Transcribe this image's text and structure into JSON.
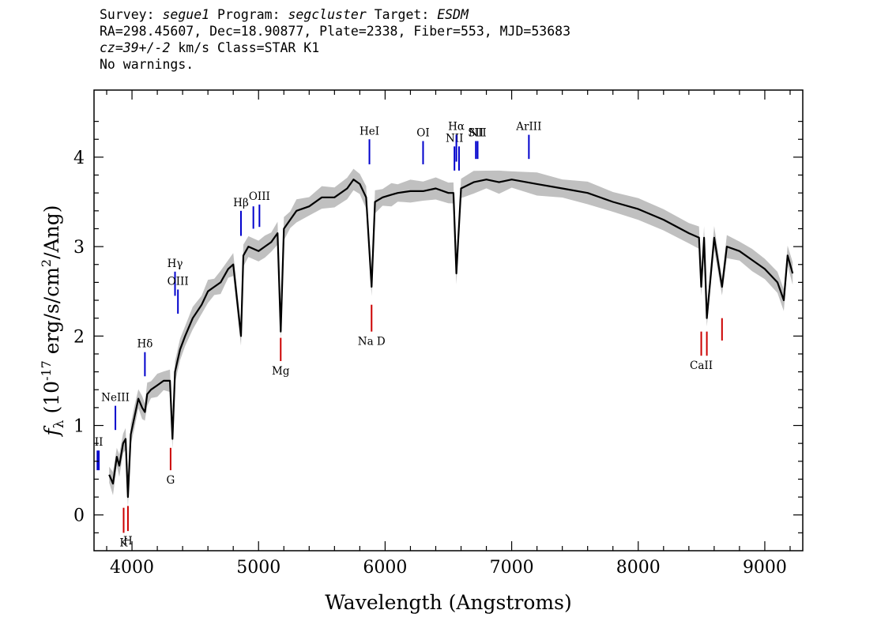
{
  "header": {
    "line1": {
      "survey_label": "Survey: ",
      "survey": "segue1",
      "program_label": " Program: ",
      "program": "segcluster",
      "target_label": " Target: ",
      "target": "ESDM"
    },
    "line2": "RA=298.45607, Dec=18.90877, Plate=2338, Fiber=553, MJD=53683",
    "line3": {
      "cz": "cz=39+/-2",
      "rest": " km/s Class=STAR K1"
    },
    "line4": "No warnings."
  },
  "chart_data": {
    "type": "line",
    "title": "",
    "xlabel": "Wavelength (Angstroms)",
    "ylabel": "f_λ (10^-17 erg/s/cm^2/Ang)",
    "xlim": [
      3700,
      9300
    ],
    "ylim": [
      -0.4,
      4.75
    ],
    "x_ticks": [
      4000,
      5000,
      6000,
      7000,
      8000,
      9000
    ],
    "y_ticks": [
      0,
      1,
      2,
      3,
      4
    ],
    "grid": false,
    "colors": {
      "spectrum": "#000000",
      "error_band": "#c0c0c0",
      "emission": "#0000cc",
      "absorption": "#cc0000"
    },
    "series": [
      {
        "x": [
          3820,
          3850,
          3880,
          3900,
          3930,
          3950,
          3968,
          3990,
          4020,
          4050,
          4080,
          4102,
          4120,
          4150,
          4200,
          4250,
          4300,
          4320,
          4340,
          4380,
          4420,
          4480,
          4550,
          4600,
          4650,
          4700,
          4760,
          4800,
          4861,
          4880,
          4920,
          5000,
          5050,
          5100,
          5150,
          5175,
          5200,
          5250,
          5300,
          5400,
          5500,
          5600,
          5700,
          5750,
          5800,
          5850,
          5893,
          5920,
          5980,
          6050,
          6100,
          6200,
          6300,
          6400,
          6500,
          6540,
          6563,
          6600,
          6700,
          6800,
          6900,
          7000,
          7200,
          7400,
          7600,
          7800,
          8000,
          8200,
          8400,
          8480,
          8498,
          8520,
          8542,
          8600,
          8662,
          8700,
          8800,
          8900,
          9000,
          9100,
          9150,
          9180,
          9220
        ],
        "y": [
          0.45,
          0.35,
          0.65,
          0.55,
          0.8,
          0.85,
          0.2,
          0.9,
          1.1,
          1.3,
          1.2,
          1.15,
          1.35,
          1.4,
          1.45,
          1.5,
          1.5,
          0.85,
          1.6,
          1.85,
          2.0,
          2.2,
          2.35,
          2.5,
          2.55,
          2.6,
          2.75,
          2.8,
          2.0,
          2.9,
          3.0,
          2.95,
          3.0,
          3.05,
          3.15,
          2.05,
          3.2,
          3.3,
          3.4,
          3.45,
          3.55,
          3.55,
          3.65,
          3.75,
          3.7,
          3.55,
          2.55,
          3.5,
          3.55,
          3.58,
          3.6,
          3.62,
          3.62,
          3.65,
          3.6,
          3.6,
          2.7,
          3.65,
          3.72,
          3.75,
          3.72,
          3.75,
          3.7,
          3.65,
          3.6,
          3.5,
          3.42,
          3.3,
          3.15,
          3.1,
          2.55,
          3.1,
          2.2,
          3.1,
          2.55,
          3.0,
          2.95,
          2.85,
          2.75,
          2.6,
          2.4,
          2.9,
          2.7
        ]
      }
    ],
    "emission_lines": [
      {
        "label": "",
        "x": 3727,
        "y_from": 0.5,
        "y_to": 0.72
      },
      {
        "label": "II",
        "x": 3738,
        "y_from": 0.5,
        "y_to": 0.72
      },
      {
        "label": "NeIII",
        "x": 3869,
        "y_from": 0.95,
        "y_to": 1.22
      },
      {
        "label": "Hδ",
        "x": 4102,
        "y_from": 1.55,
        "y_to": 1.82
      },
      {
        "label": "Hγ",
        "x": 4340,
        "y_from": 2.45,
        "y_to": 2.72
      },
      {
        "label": "OIII",
        "x": 4363,
        "y_from": 2.25,
        "y_to": 2.52
      },
      {
        "label": "Hβ",
        "x": 4861,
        "y_from": 3.12,
        "y_to": 3.4
      },
      {
        "label": "",
        "x": 4959,
        "y_from": 3.2,
        "y_to": 3.45
      },
      {
        "label": "OIII",
        "x": 5007,
        "y_from": 3.22,
        "y_to": 3.47
      },
      {
        "label": "HeI",
        "x": 5876,
        "y_from": 3.92,
        "y_to": 4.2
      },
      {
        "label": "OI",
        "x": 6300,
        "y_from": 3.92,
        "y_to": 4.18
      },
      {
        "label": "NII",
        "x": 6548,
        "y_from": 3.85,
        "y_to": 4.12
      },
      {
        "label": "Hα",
        "x": 6563,
        "y_from": 3.95,
        "y_to": 4.25
      },
      {
        "label": "",
        "x": 6584,
        "y_from": 3.85,
        "y_to": 4.12
      },
      {
        "label": "SII",
        "x": 6717,
        "y_from": 3.98,
        "y_to": 4.18
      },
      {
        "label": "NII",
        "x": 6731,
        "y_from": 3.98,
        "y_to": 4.18
      },
      {
        "label": "ArIII",
        "x": 7136,
        "y_from": 3.98,
        "y_to": 4.25
      }
    ],
    "absorption_lines": [
      {
        "label": "K",
        "x": 3934,
        "y_from": -0.2,
        "y_to": 0.08
      },
      {
        "label": "H",
        "x": 3968,
        "y_from": -0.18,
        "y_to": 0.1
      },
      {
        "label": "G",
        "x": 4305,
        "y_from": 0.5,
        "y_to": 0.75
      },
      {
        "label": "Mg",
        "x": 5175,
        "y_from": 1.72,
        "y_to": 1.98
      },
      {
        "label": "Na D",
        "x": 5893,
        "y_from": 2.05,
        "y_to": 2.35
      },
      {
        "label": "CaII",
        "x": 8498,
        "y_from": 1.78,
        "y_to": 2.05
      },
      {
        "label": "",
        "x": 8542,
        "y_from": 1.78,
        "y_to": 2.05
      },
      {
        "label": "",
        "x": 8662,
        "y_from": 1.95,
        "y_to": 2.2
      }
    ]
  }
}
